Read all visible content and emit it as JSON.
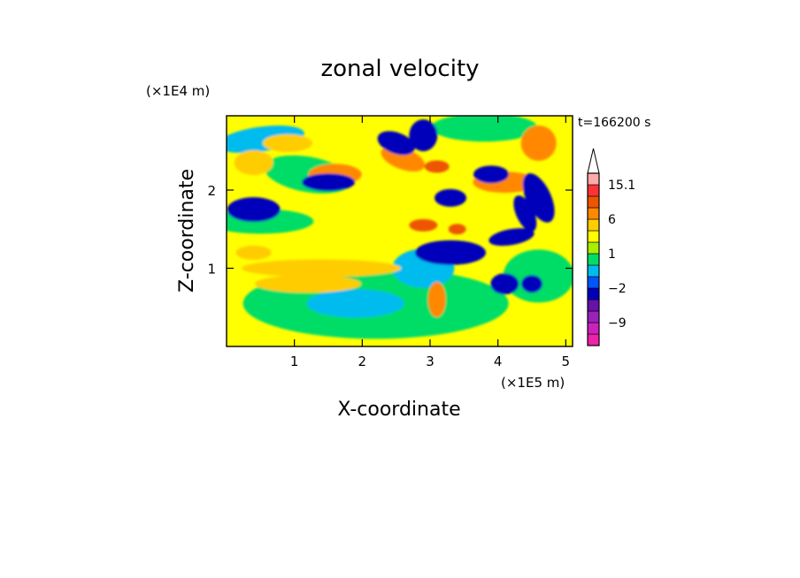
{
  "chart_data": {
    "type": "heatmap",
    "title": "zonal velocity",
    "xlabel": "X-coordinate",
    "ylabel": "Z-coordinate",
    "x_unit": "(×1E5 m)",
    "y_unit": "(×1E4 m)",
    "time_label": "t=166200 s",
    "xlim": [
      0,
      5.1
    ],
    "ylim": [
      0,
      2.95
    ],
    "x_ticks": [
      1,
      2,
      3,
      4,
      5
    ],
    "y_ticks": [
      1,
      2
    ],
    "colorbar": {
      "levels": [
        -15,
        -12,
        -9,
        -6,
        -3,
        -2,
        -1,
        0,
        1,
        2,
        3,
        6,
        9,
        12,
        15.1
      ],
      "tick_labels": [
        "15.1",
        "6",
        "1",
        "−2",
        "−9"
      ],
      "tick_values": [
        15.1,
        6,
        1,
        -2,
        -9
      ],
      "extend": "max",
      "colors": [
        "#ee22aa",
        "#cc22bb",
        "#9922bb",
        "#6611aa",
        "#0000bb",
        "#0055ff",
        "#00bbee",
        "#00dd66",
        "#aaee00",
        "#ffff00",
        "#ffcc00",
        "#ff8800",
        "#ee5500",
        "#ff3333",
        "#ffaaaa",
        "#ffffff"
      ]
    }
  }
}
